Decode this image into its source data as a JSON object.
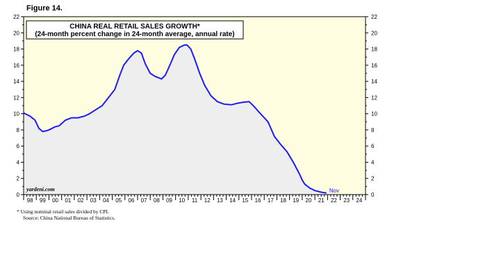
{
  "figure_label": "Figure 14.",
  "colors": {
    "plot_bg": "#fffde0",
    "area_fill": "#eeeeee",
    "line": "#1a1aff",
    "axis": "#000000"
  },
  "watermark": "yardeni.com",
  "footnote": {
    "line1": "*  Using nominal retail sales divided by CPI.",
    "line2": "Source: China National Bureau of Statistics."
  },
  "chart_data": {
    "type": "area",
    "title": "CHINA REAL RETAIL SALES GROWTH*",
    "subtitle": "(24-month percent change in 24-month average, annual rate)",
    "xlabel": "",
    "ylabel": "",
    "ylim": [
      0,
      22
    ],
    "y_ticks": [
      0,
      2,
      4,
      6,
      8,
      10,
      12,
      14,
      16,
      18,
      20,
      22
    ],
    "xlim": [
      1998,
      2025
    ],
    "x_tick_labels": [
      "98",
      "99",
      "00",
      "01",
      "02",
      "03",
      "04",
      "05",
      "06",
      "07",
      "08",
      "09",
      "10",
      "11",
      "12",
      "13",
      "14",
      "15",
      "16",
      "17",
      "18",
      "19",
      "20",
      "21",
      "22",
      "23",
      "24"
    ],
    "last_point_label": "Nov",
    "grid": false,
    "series": [
      {
        "x": [
          1998.0,
          1998.5,
          1998.9,
          1999.2,
          1999.5,
          1999.8,
          2000.0,
          2000.5,
          2000.8,
          2001.3,
          2001.8,
          2002.3,
          2002.8,
          2003.2,
          2003.7,
          2004.2,
          2004.7,
          2005.2,
          2005.6,
          2005.9,
          2006.3,
          2006.7,
          2007.0,
          2007.3,
          2007.6,
          2008.0,
          2008.4,
          2008.9,
          2009.2,
          2009.6,
          2009.9,
          2010.3,
          2010.7,
          2010.9,
          2011.2,
          2011.5,
          2011.9,
          2012.3,
          2012.8,
          2013.3,
          2013.8,
          2014.4,
          2014.9,
          2015.3,
          2015.8,
          2016.2,
          2016.7,
          2017.3,
          2017.8,
          2018.3,
          2018.8,
          2019.3,
          2019.8,
          2020.0,
          2020.2,
          2020.6,
          2021.0,
          2021.5,
          2021.92
        ],
        "values": [
          10.1,
          9.7,
          9.2,
          8.2,
          7.8,
          7.9,
          8.0,
          8.4,
          8.5,
          9.2,
          9.5,
          9.5,
          9.7,
          10.0,
          10.5,
          11.0,
          12.0,
          13.0,
          14.8,
          16.0,
          16.8,
          17.5,
          17.8,
          17.5,
          16.2,
          15.0,
          14.6,
          14.3,
          14.8,
          16.2,
          17.3,
          18.2,
          18.5,
          18.5,
          18.0,
          16.8,
          15.0,
          13.5,
          12.2,
          11.5,
          11.2,
          11.1,
          11.3,
          11.4,
          11.5,
          10.9,
          10.0,
          9.0,
          7.2,
          6.2,
          5.3,
          4.0,
          2.5,
          1.8,
          1.3,
          0.8,
          0.5,
          0.3,
          0.2
        ]
      }
    ]
  }
}
